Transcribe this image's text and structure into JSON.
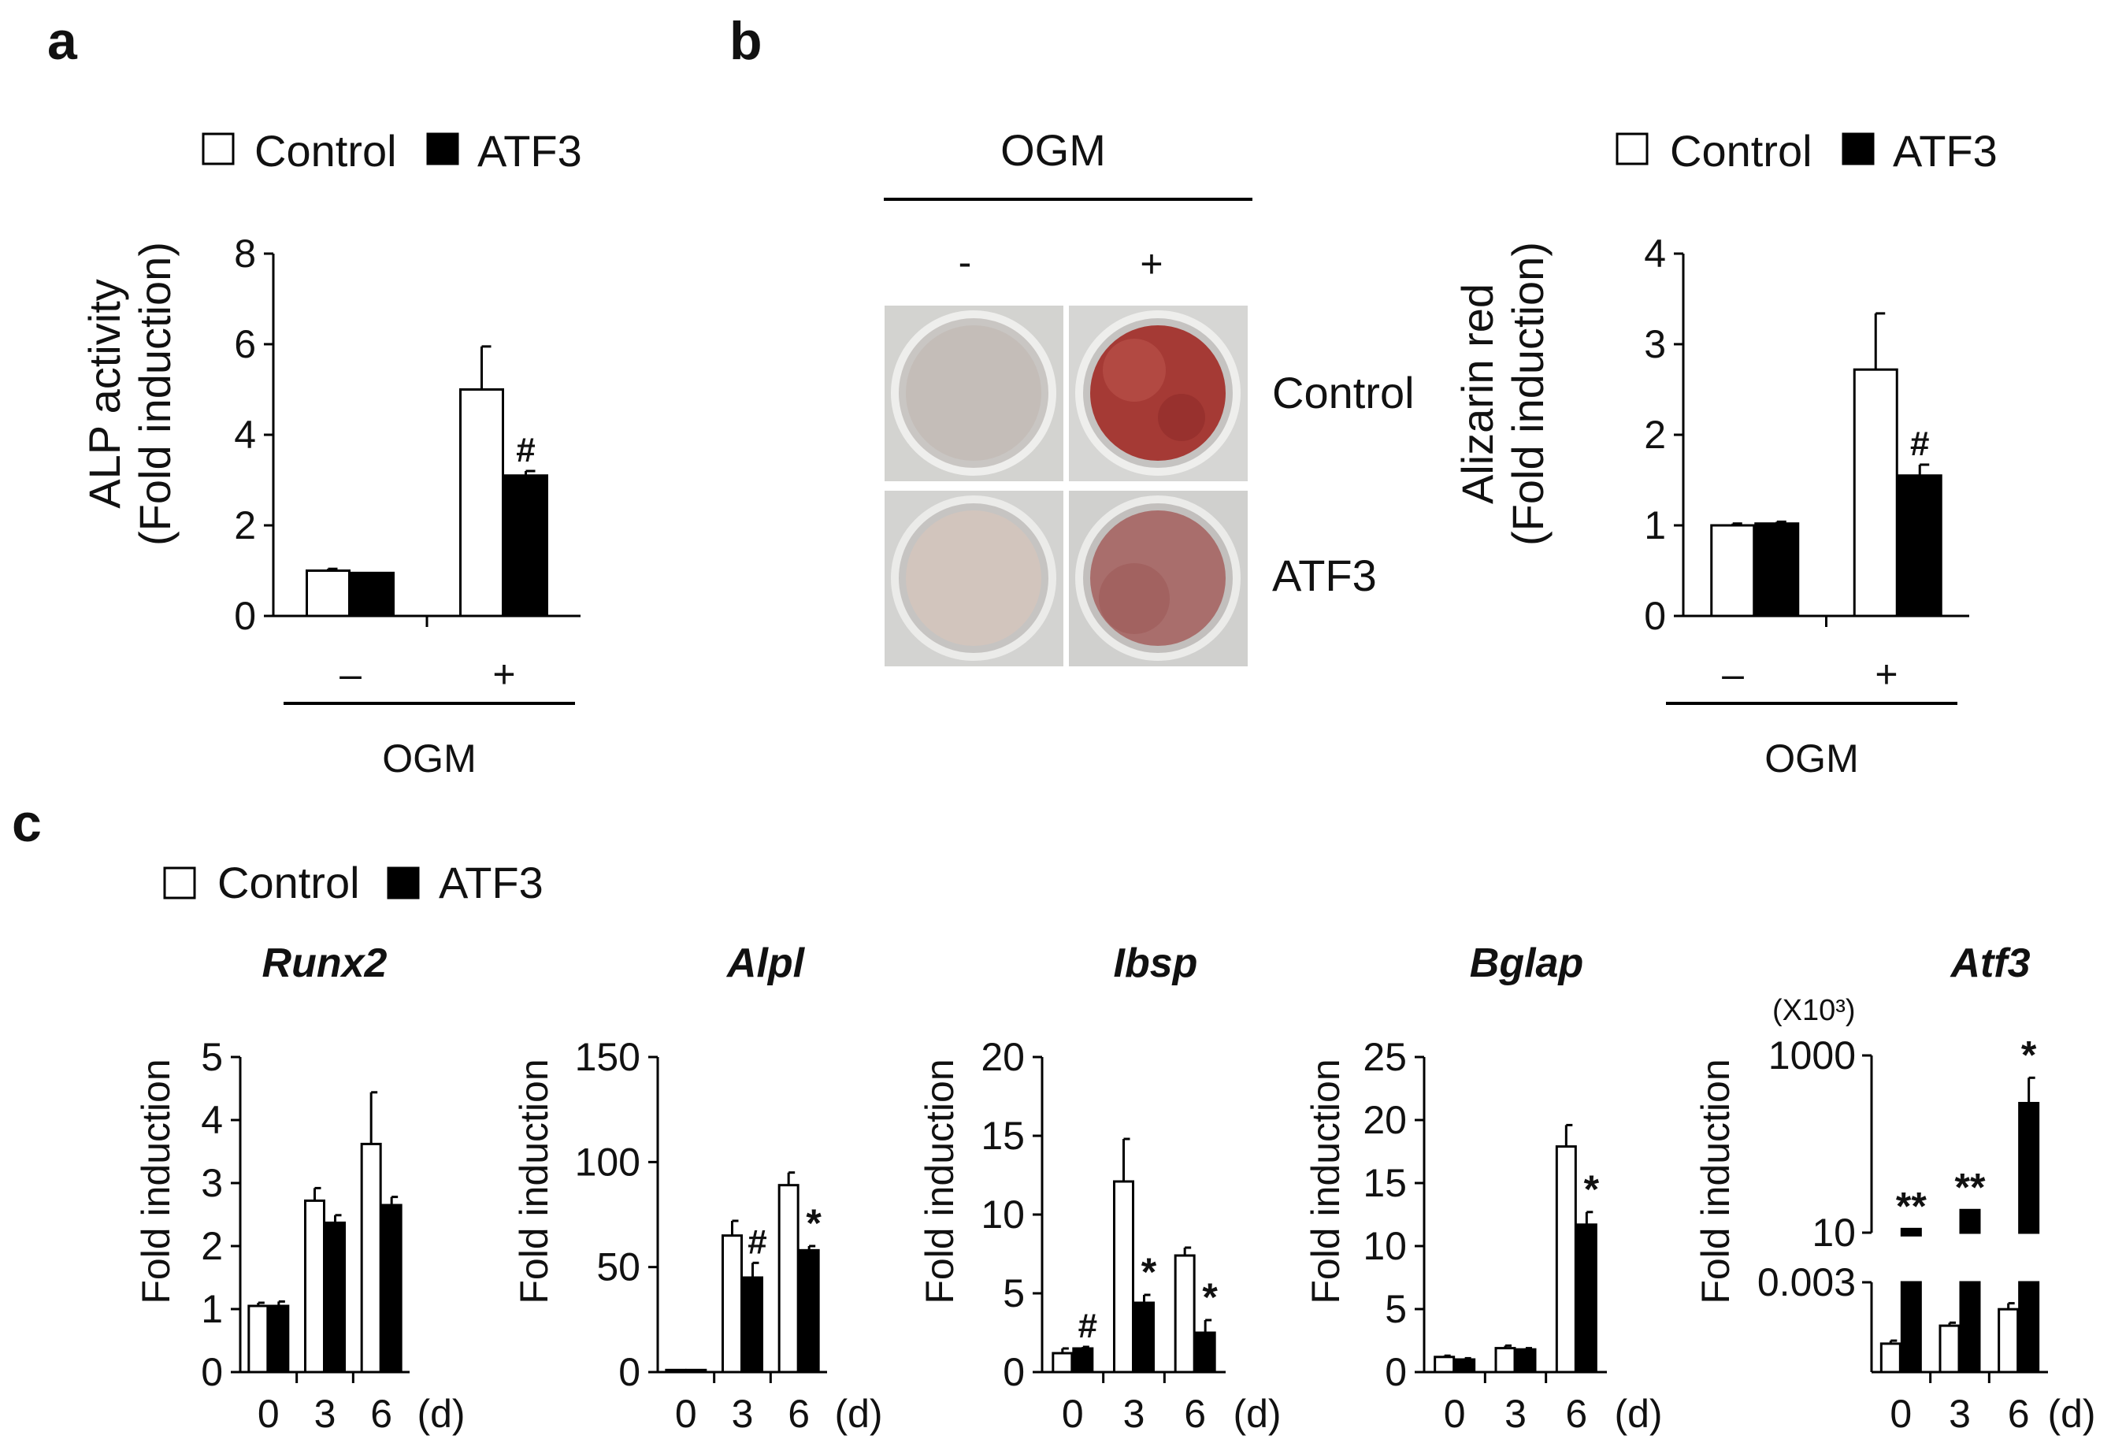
{
  "colors": {
    "control": "#ffffff",
    "atf3": "#000000",
    "stroke": "#000000"
  },
  "chart_data": [
    {
      "panel": "a",
      "type": "bar",
      "legend": [
        "Control",
        "ATF3"
      ],
      "ylabel": [
        "ALP activity",
        "(Fold induction)"
      ],
      "ylim": [
        0,
        8
      ],
      "yticks": [
        "0",
        "2",
        "4",
        "6",
        "8"
      ],
      "categories": [
        "–",
        "+"
      ],
      "group_label": "OGM",
      "series": [
        {
          "name": "Control",
          "values": [
            1.0,
            5.0
          ],
          "errors": [
            0.04,
            0.95
          ]
        },
        {
          "name": "ATF3",
          "values": [
            0.95,
            3.1
          ],
          "errors": [
            0.0,
            0.1
          ]
        }
      ],
      "annotations": [
        {
          "series": 1,
          "index": 1,
          "text": "#"
        }
      ]
    },
    {
      "panel": "b",
      "type": "bar",
      "legend": [
        "Control",
        "ATF3"
      ],
      "ylabel": [
        "Alizarin red",
        "(Fold induction)"
      ],
      "ylim": [
        0,
        4
      ],
      "yticks": [
        "0",
        "1",
        "2",
        "3",
        "4"
      ],
      "categories": [
        "–",
        "+"
      ],
      "group_label": "OGM",
      "series": [
        {
          "name": "Control",
          "values": [
            1.0,
            2.72
          ],
          "errors": [
            0.02,
            0.62
          ]
        },
        {
          "name": "ATF3",
          "values": [
            1.02,
            1.55
          ],
          "errors": [
            0.02,
            0.12
          ]
        }
      ],
      "annotations": [
        {
          "series": 1,
          "index": 1,
          "text": "#"
        }
      ]
    },
    {
      "panel": "c",
      "gene": "Runx2",
      "type": "bar",
      "ylabel": "Fold induction",
      "ylim": [
        0,
        5
      ],
      "yticks": [
        "0",
        "1",
        "2",
        "3",
        "4",
        "5"
      ],
      "categories": [
        "0",
        "3",
        "6"
      ],
      "unit": "(d)",
      "series": [
        {
          "name": "Control",
          "values": [
            1.05,
            2.72,
            3.62
          ],
          "errors": [
            0.05,
            0.2,
            0.82
          ]
        },
        {
          "name": "ATF3",
          "values": [
            1.05,
            2.37,
            2.65
          ],
          "errors": [
            0.07,
            0.12,
            0.13
          ]
        }
      ],
      "annotations": []
    },
    {
      "panel": "c",
      "gene": "Alpl",
      "type": "bar",
      "ylabel": "Fold induction",
      "ylim": [
        0,
        150
      ],
      "yticks": [
        "0",
        "50",
        "100",
        "150"
      ],
      "categories": [
        "0",
        "3",
        "6"
      ],
      "unit": "(d)",
      "series": [
        {
          "name": "Control",
          "values": [
            1,
            65,
            89
          ],
          "errors": [
            0,
            7,
            6
          ]
        },
        {
          "name": "ATF3",
          "values": [
            1,
            45,
            58
          ],
          "errors": [
            0,
            7,
            2
          ]
        }
      ],
      "annotations": [
        {
          "series": 1,
          "index": 1,
          "text": "#"
        },
        {
          "series": 1,
          "index": 2,
          "text": "*"
        }
      ]
    },
    {
      "panel": "c",
      "gene": "Ibsp",
      "type": "bar",
      "ylabel": "Fold induction",
      "ylim": [
        0,
        20
      ],
      "yticks": [
        "0",
        "5",
        "10",
        "15",
        "20"
      ],
      "categories": [
        "0",
        "3",
        "6"
      ],
      "unit": "(d)",
      "series": [
        {
          "name": "Control",
          "values": [
            1.2,
            12.1,
            7.4
          ],
          "errors": [
            0.3,
            2.7,
            0.5
          ]
        },
        {
          "name": "ATF3",
          "values": [
            1.5,
            4.4,
            2.5
          ],
          "errors": [
            0.1,
            0.5,
            0.8
          ]
        }
      ],
      "annotations": [
        {
          "series": 1,
          "index": 0,
          "text": "#"
        },
        {
          "series": 1,
          "index": 1,
          "text": "*"
        },
        {
          "series": 1,
          "index": 2,
          "text": "*"
        }
      ]
    },
    {
      "panel": "c",
      "gene": "Bglap",
      "type": "bar",
      "ylabel": "Fold induction",
      "ylim": [
        0,
        25
      ],
      "yticks": [
        "0",
        "5",
        "10",
        "15",
        "20",
        "25"
      ],
      "categories": [
        "0",
        "3",
        "6"
      ],
      "unit": "(d)",
      "series": [
        {
          "name": "Control",
          "values": [
            1.2,
            1.9,
            17.9
          ],
          "errors": [
            0.1,
            0.2,
            1.7
          ]
        },
        {
          "name": "ATF3",
          "values": [
            1.0,
            1.8,
            11.7
          ],
          "errors": [
            0.1,
            0.1,
            1.0
          ]
        }
      ],
      "annotations": [
        {
          "series": 1,
          "index": 2,
          "text": "*"
        }
      ]
    },
    {
      "panel": "c",
      "gene": "Atf3",
      "type": "bar",
      "ylabel": "Fold induction",
      "scale_note": "(X10³)",
      "yscale": "broken",
      "ylim_lower": [
        0,
        0.003
      ],
      "ylim_upper": [
        10,
        1000
      ],
      "yticks": [
        "0.003",
        "10",
        "1000"
      ],
      "categories": [
        "0",
        "3",
        "6"
      ],
      "unit": "(d)",
      "series": [
        {
          "name": "Control",
          "values": [
            0.00095,
            0.00155,
            0.0021
          ],
          "errors": [
            0.0001,
            0.0001,
            0.0002
          ]
        },
        {
          "name": "ATF3",
          "values": [
            11,
            18,
            290
          ],
          "errors": [
            0,
            0,
            270
          ]
        }
      ],
      "annotations": [
        {
          "series": 1,
          "index": 0,
          "text": "**"
        },
        {
          "series": 1,
          "index": 1,
          "text": "**"
        },
        {
          "series": 1,
          "index": 2,
          "text": "*"
        }
      ]
    }
  ],
  "labels": {
    "panel_a": "a",
    "panel_b": "b",
    "panel_c": "c",
    "ogm": "OGM",
    "control": "Control",
    "atf3": "ATF3",
    "minus": "-",
    "plus": "+"
  }
}
